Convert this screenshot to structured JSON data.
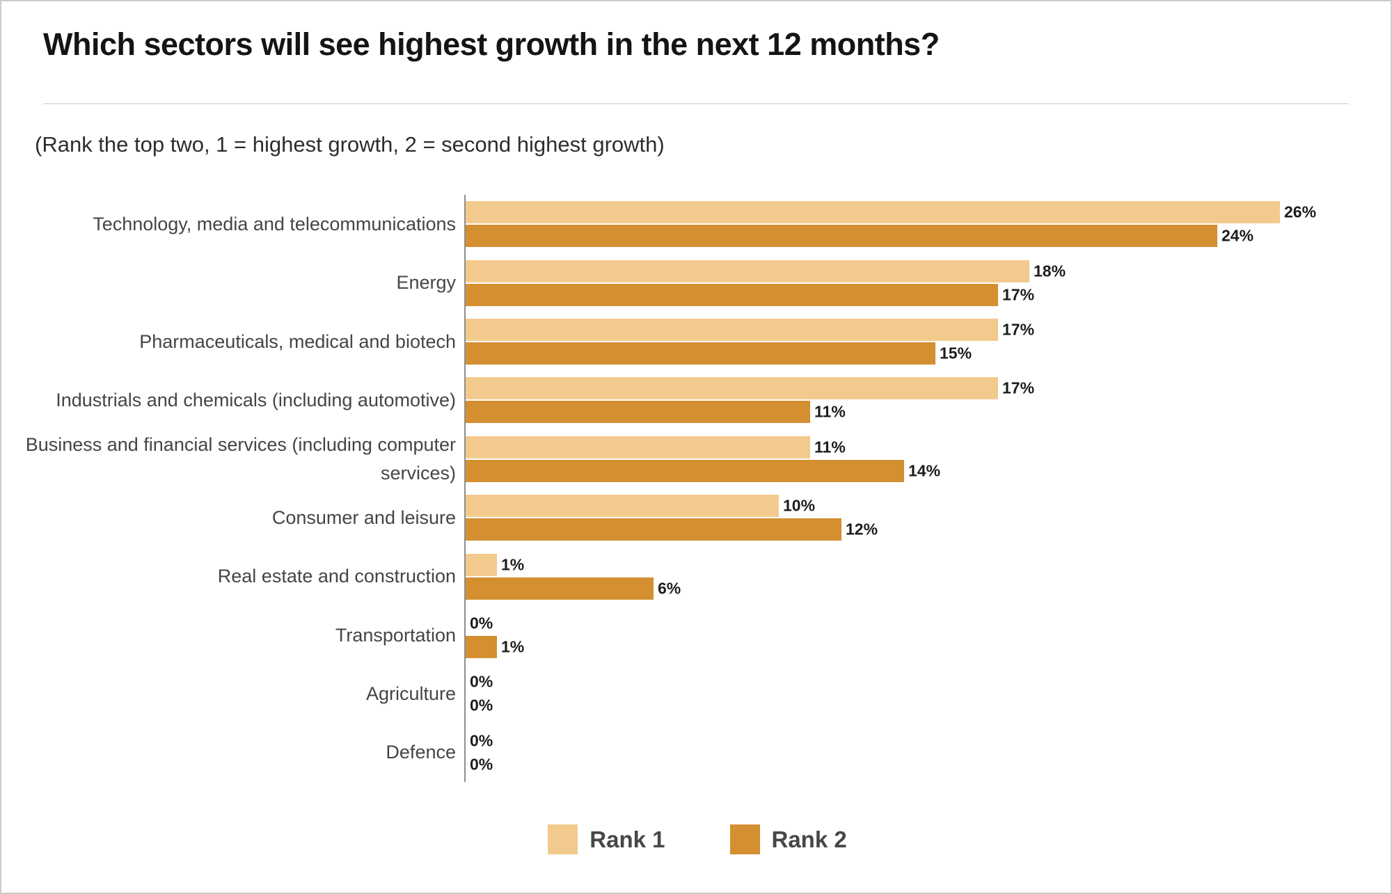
{
  "header": {
    "title": "Which sectors will see highest growth in the next 12 months?",
    "subtitle": "(Rank the top two, 1 = highest growth, 2 = second highest growth)"
  },
  "chart_data": {
    "type": "bar",
    "orientation": "horizontal",
    "unit": "%",
    "value_labels": true,
    "axis_color": "#8f8f8f",
    "grid": false,
    "legend_position": "bottom",
    "xlim": [
      0,
      28
    ],
    "categories": [
      "Technology, media and telecommunications",
      "Energy",
      "Pharmaceuticals, medical and biotech",
      "Industrials and chemicals (including automotive)",
      "Business and financial services (including computer services)",
      "Consumer and leisure",
      "Real estate and construction",
      "Transportation",
      "Agriculture",
      "Defence"
    ],
    "series": [
      {
        "name": "Rank 1",
        "color": "#F3CA8E",
        "values": [
          26,
          18,
          17,
          17,
          11,
          10,
          1,
          0,
          0,
          0
        ]
      },
      {
        "name": "Rank 2",
        "color": "#D48F31",
        "values": [
          24,
          17,
          15,
          11,
          14,
          12,
          6,
          1,
          0,
          0
        ]
      }
    ]
  },
  "legend": {
    "items": [
      {
        "label": "Rank 1",
        "color": "#F3CA8E"
      },
      {
        "label": "Rank 2",
        "color": "#D48F31"
      }
    ]
  }
}
